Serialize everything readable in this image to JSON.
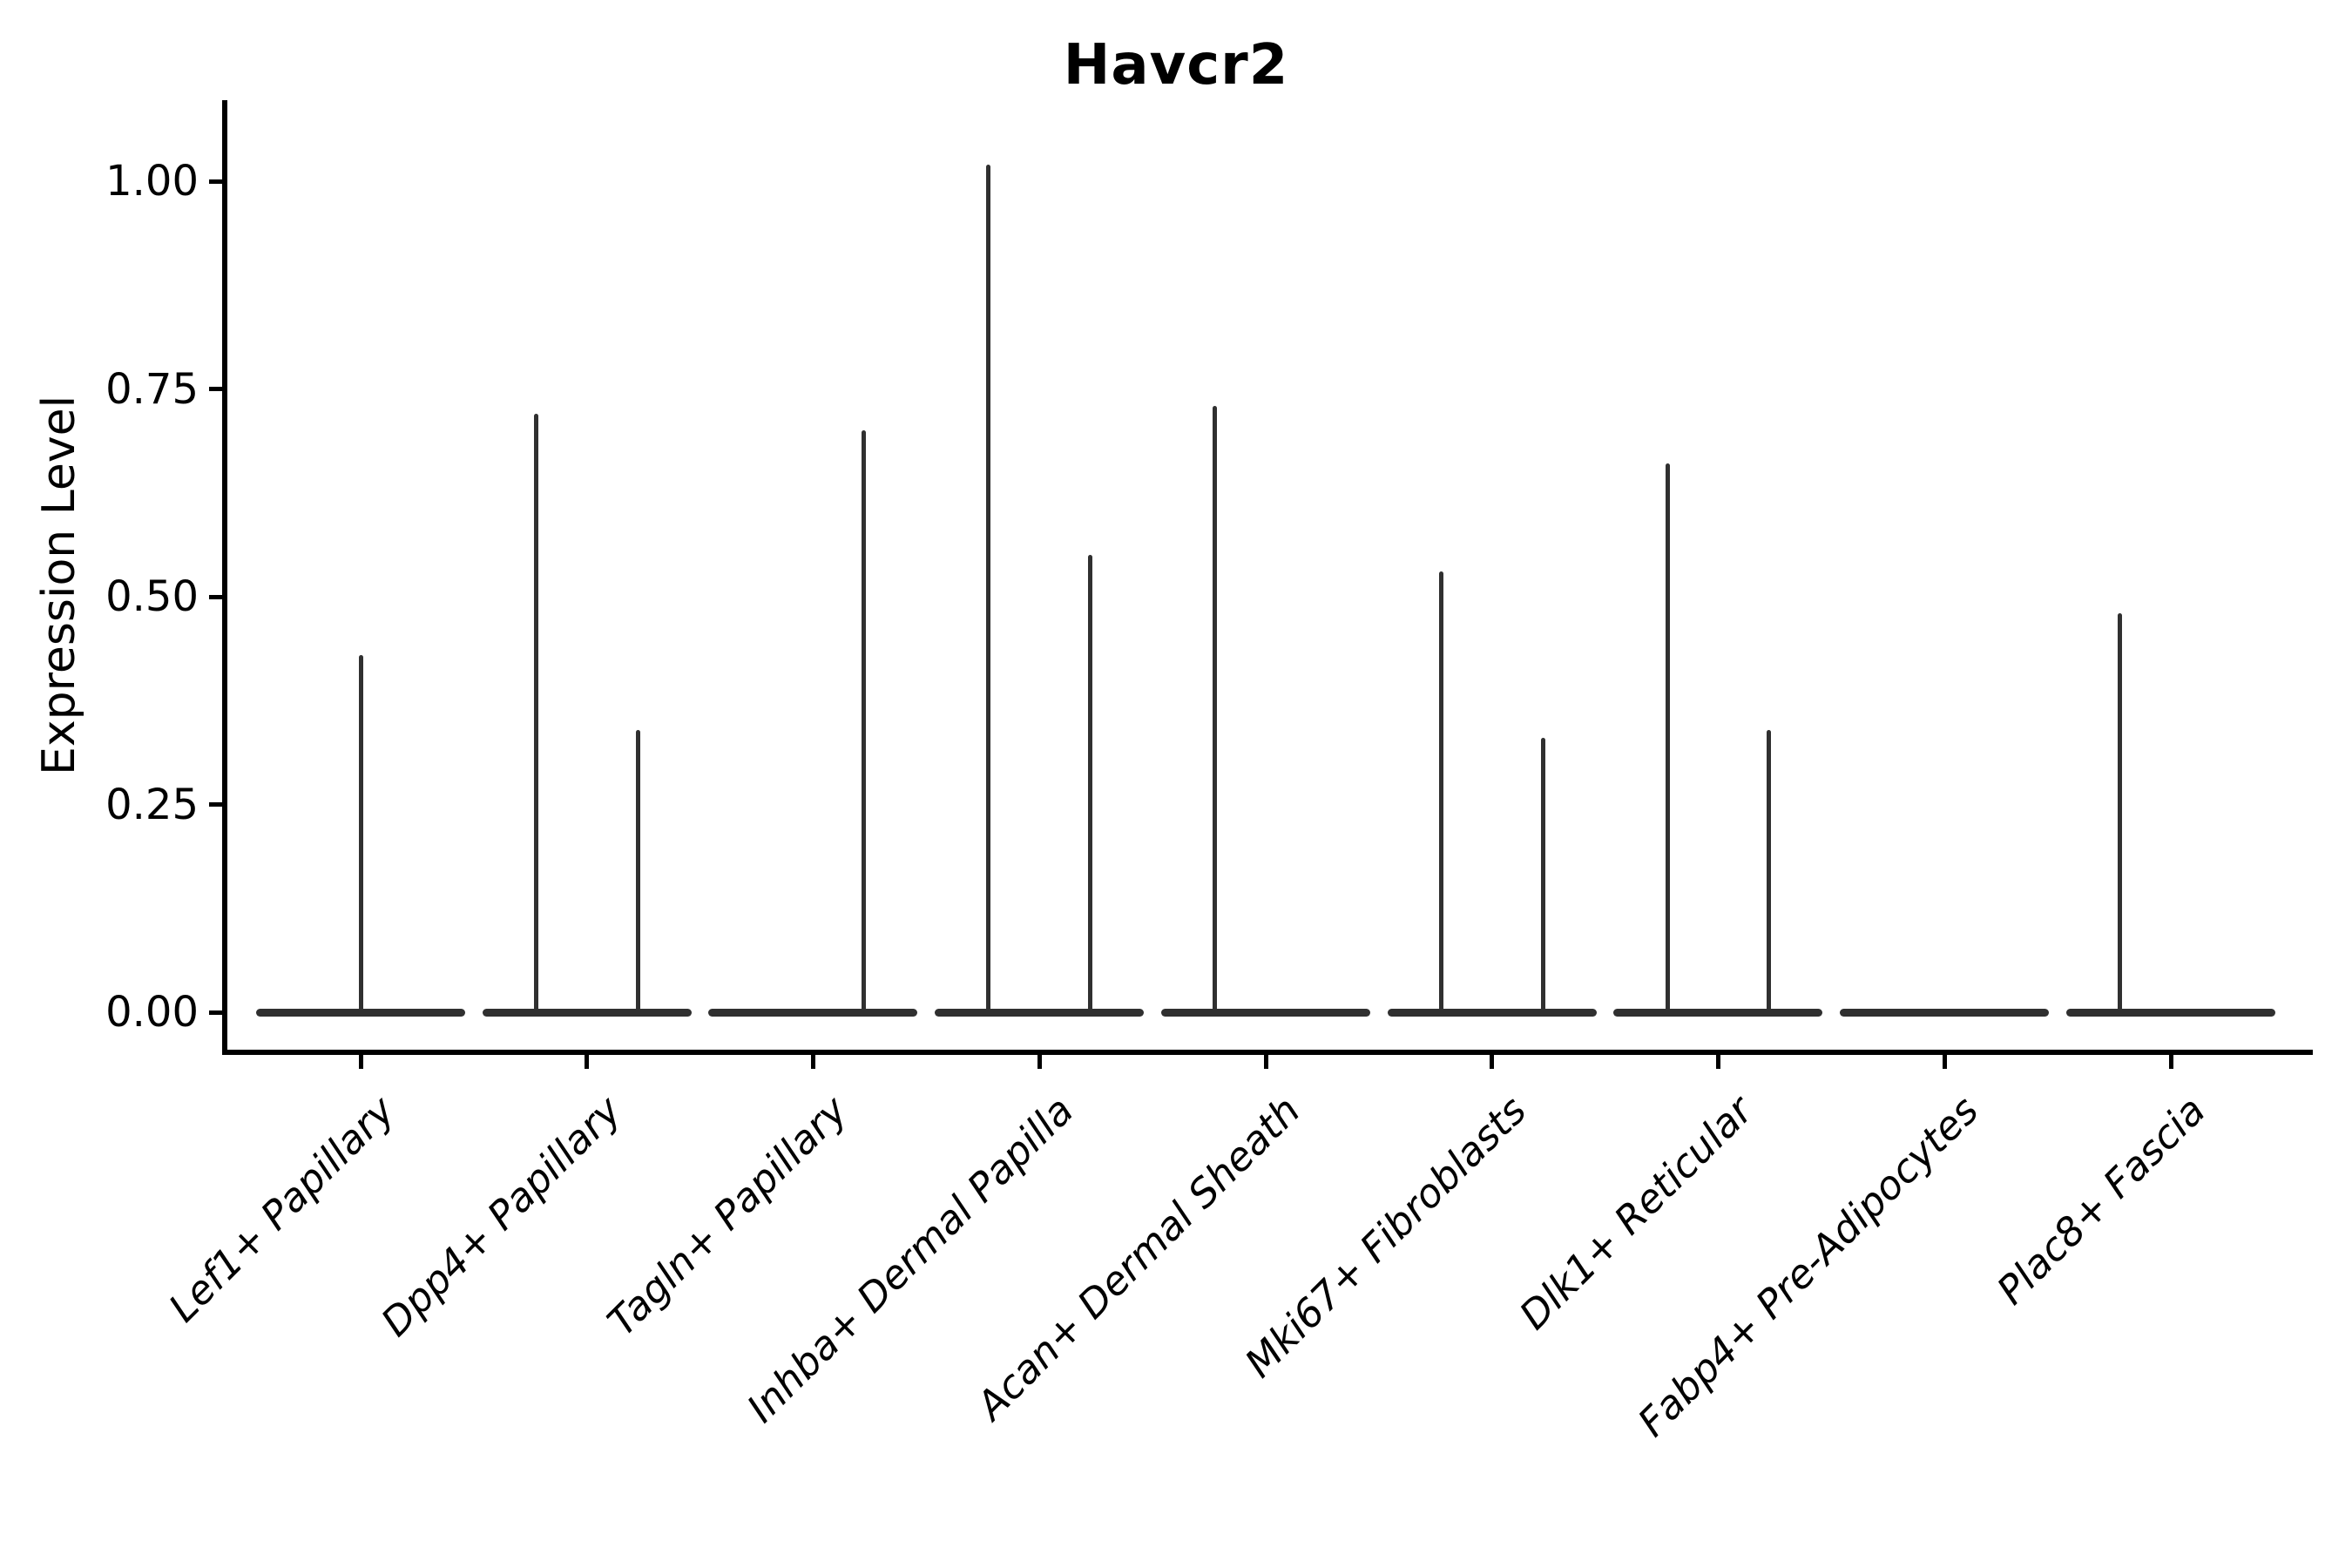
{
  "title": "Havcr2",
  "chart_data": {
    "type": "violin",
    "title": "Havcr2",
    "xlabel": "",
    "ylabel": "Expression Level",
    "ylim": [
      0,
      1.07
    ],
    "yticks": [
      0,
      0.25,
      0.5,
      0.75,
      1.0
    ],
    "ytick_labels": [
      "0.00",
      "0.25",
      "0.50",
      "0.75",
      "1.00"
    ],
    "grid": "off",
    "legend": "none",
    "violin_color": "#303030",
    "axis_color": "#000000",
    "categories": [
      "Lef1+ Papillary",
      "Dpp4+ Papillary",
      "Tagln+ Papillary",
      "Inhba+ Dermal Papilla",
      "Acan+ Dermal Sheath",
      "Mki67+ Fibroblasts",
      "Dlk1+ Reticular",
      "Fabp4+ Pre-Adipocytes",
      "Plac8+ Fascia"
    ],
    "violins": [
      {
        "category": "Lef1+ Papillary",
        "base_halfwidth": 0.462,
        "spikes": [
          {
            "offset": 0.0,
            "max_expression": 0.43
          }
        ]
      },
      {
        "category": "Dpp4+ Papillary",
        "base_halfwidth": 0.462,
        "spikes": [
          {
            "offset": -0.225,
            "max_expression": 0.72
          },
          {
            "offset": 0.225,
            "max_expression": 0.34
          }
        ]
      },
      {
        "category": "Tagln+ Papillary",
        "base_halfwidth": 0.462,
        "spikes": [
          {
            "offset": 0.225,
            "max_expression": 0.7
          }
        ]
      },
      {
        "category": "Inhba+ Dermal Papilla",
        "base_halfwidth": 0.462,
        "spikes": [
          {
            "offset": -0.225,
            "max_expression": 1.02
          },
          {
            "offset": 0.225,
            "max_expression": 0.55
          }
        ]
      },
      {
        "category": "Acan+ Dermal Sheath",
        "base_halfwidth": 0.462,
        "spikes": [
          {
            "offset": -0.225,
            "max_expression": 0.73
          }
        ]
      },
      {
        "category": "Mki67+ Fibroblasts",
        "base_halfwidth": 0.462,
        "spikes": [
          {
            "offset": -0.225,
            "max_expression": 0.53
          },
          {
            "offset": 0.225,
            "max_expression": 0.33
          }
        ]
      },
      {
        "category": "Dlk1+ Reticular",
        "base_halfwidth": 0.462,
        "spikes": [
          {
            "offset": -0.225,
            "max_expression": 0.66
          },
          {
            "offset": 0.225,
            "max_expression": 0.34
          }
        ]
      },
      {
        "category": "Fabp4+ Pre-Adipocytes",
        "base_halfwidth": 0.462,
        "spikes": []
      },
      {
        "category": "Plac8+ Fascia",
        "base_halfwidth": 0.462,
        "spikes": [
          {
            "offset": -0.225,
            "max_expression": 0.48
          }
        ]
      }
    ]
  }
}
